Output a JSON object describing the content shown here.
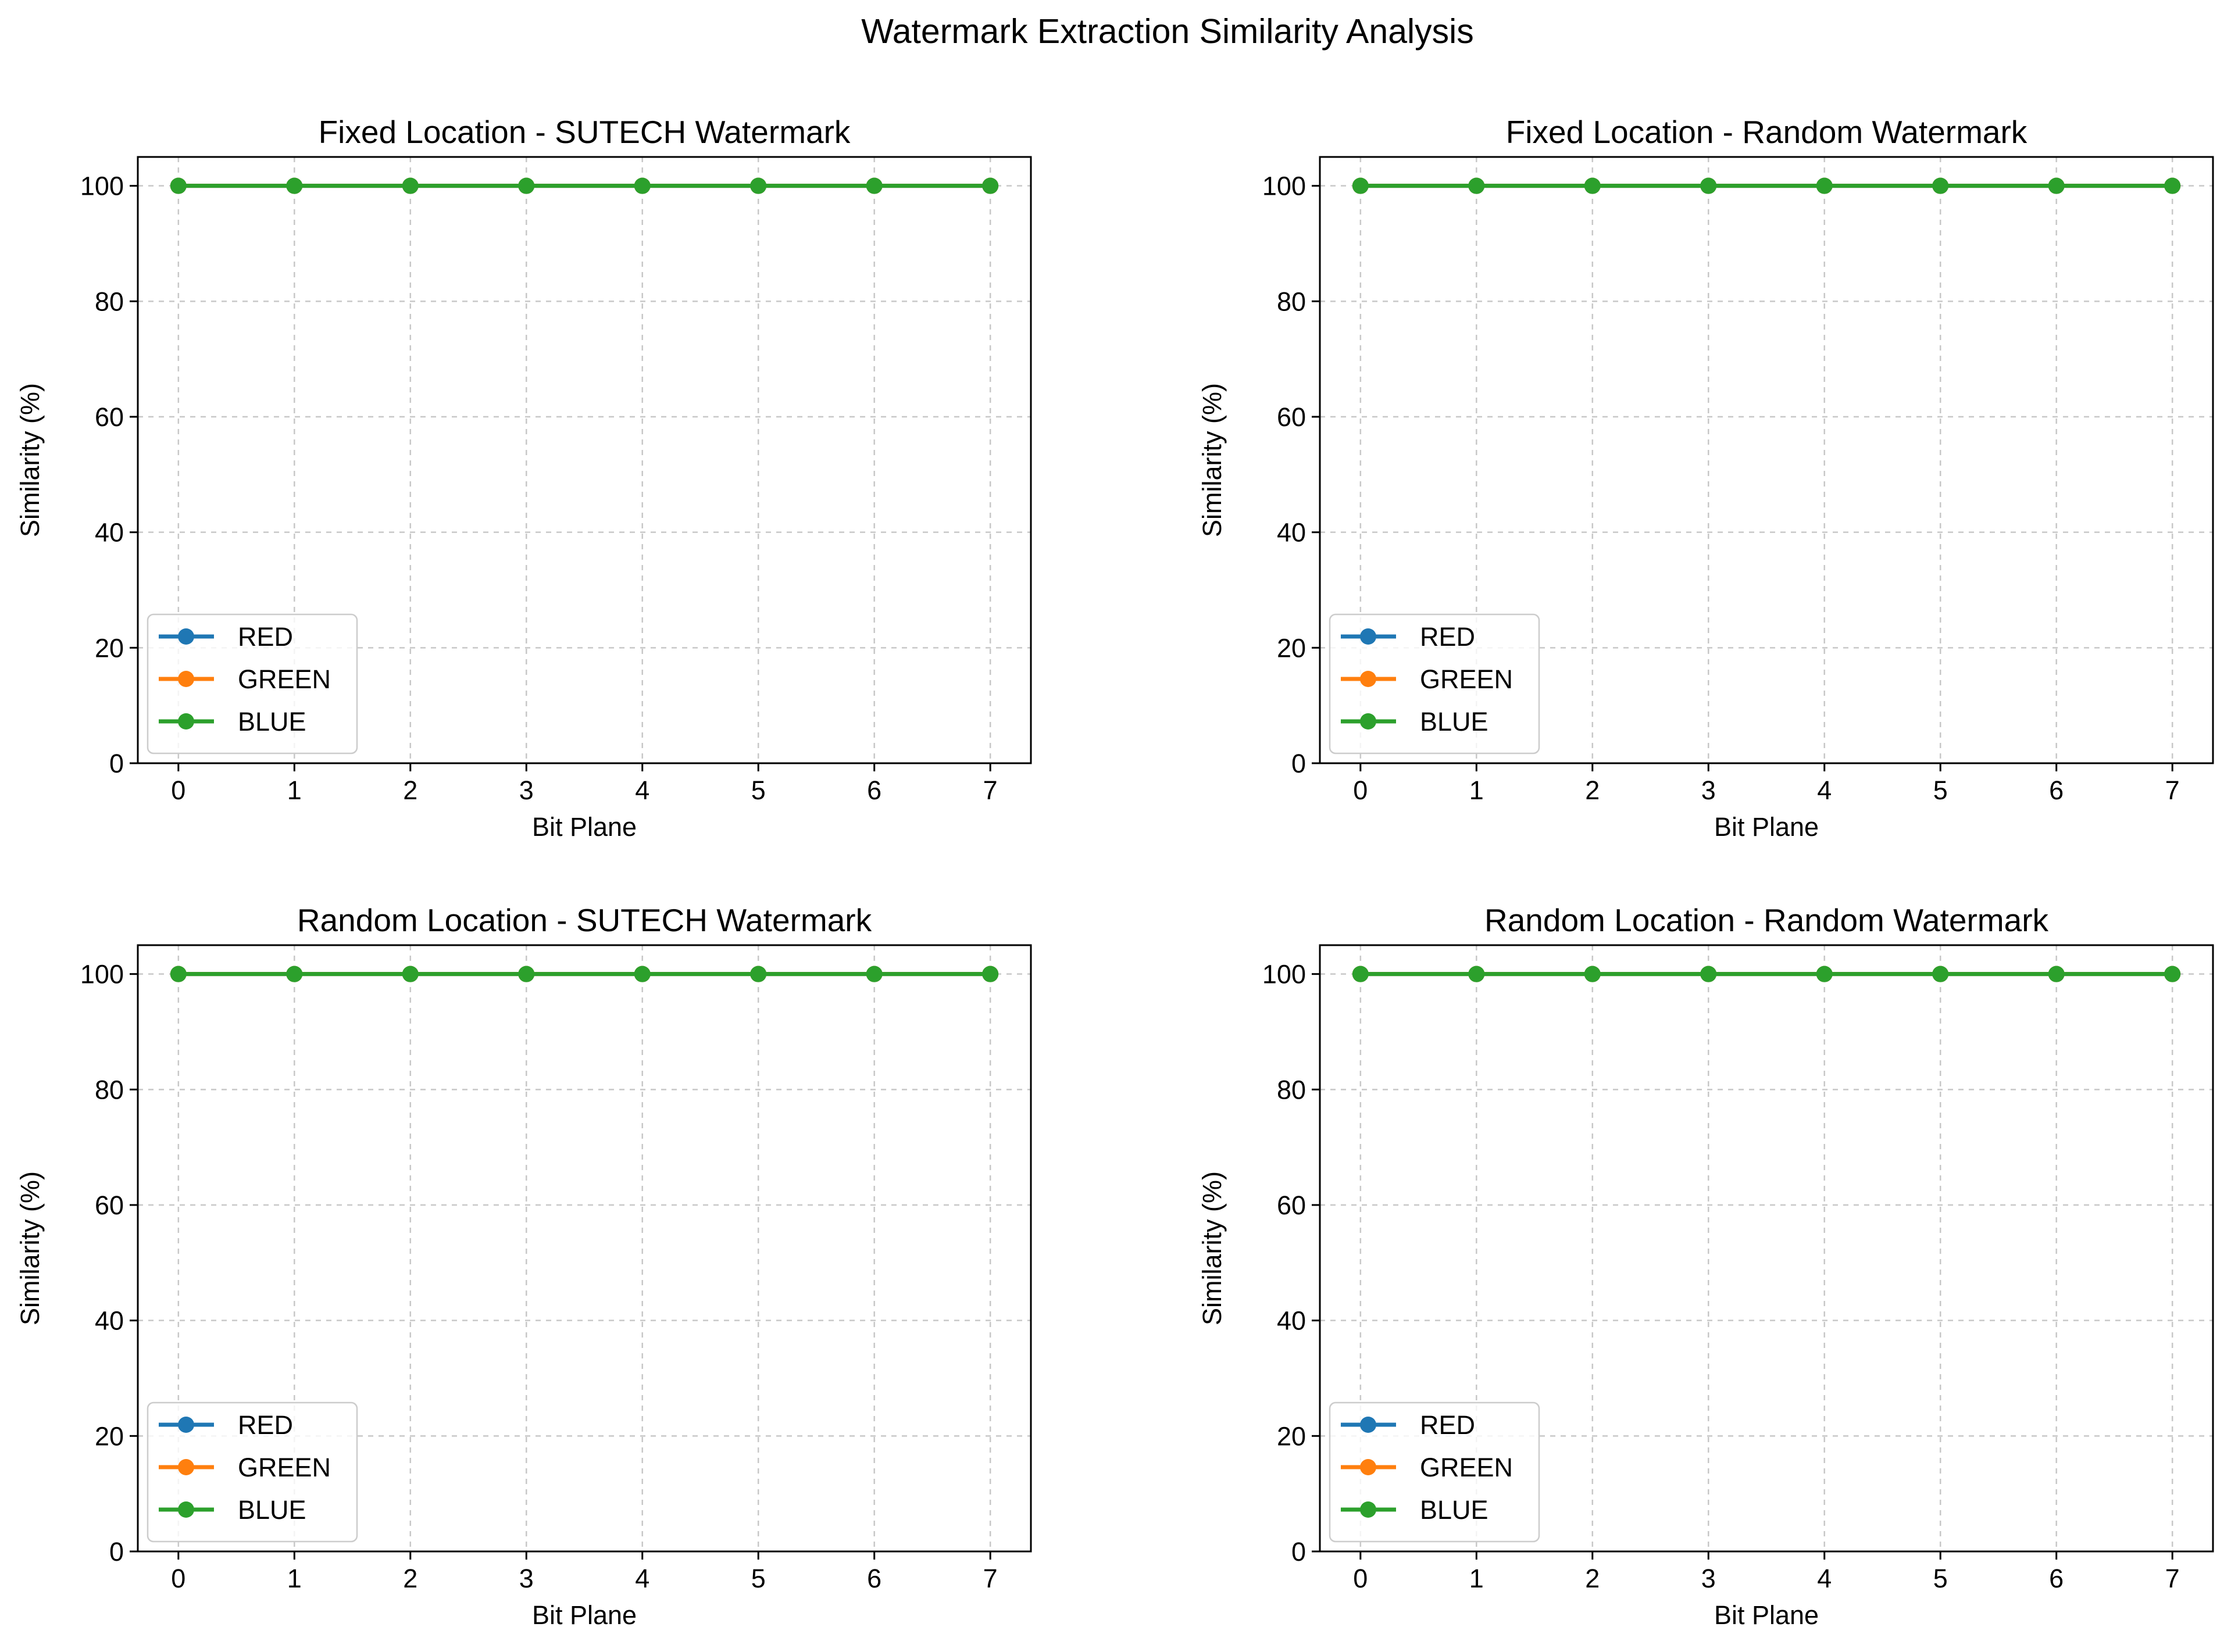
{
  "figure": {
    "suptitle": "Watermark Extraction Similarity Analysis"
  },
  "chart_data": [
    {
      "type": "line",
      "title": "Fixed Location - SUTECH Watermark",
      "xlabel": "Bit Plane",
      "ylabel": "Similarity (%)",
      "x": [
        0,
        1,
        2,
        3,
        4,
        5,
        6,
        7
      ],
      "xticks": [
        0,
        1,
        2,
        3,
        4,
        5,
        6,
        7
      ],
      "yticks": [
        0,
        20,
        40,
        60,
        80,
        100
      ],
      "xlim": [
        -0.35,
        7.35
      ],
      "ylim": [
        0,
        105
      ],
      "grid": true,
      "grid_style": "dashed",
      "legend_position": "lower left",
      "series": [
        {
          "name": "RED",
          "color": "#1f77b4",
          "marker": "circle",
          "values": [
            100,
            100,
            100,
            100,
            100,
            100,
            100,
            100
          ]
        },
        {
          "name": "GREEN",
          "color": "#ff7f0e",
          "marker": "circle",
          "values": [
            100,
            100,
            100,
            100,
            100,
            100,
            100,
            100
          ]
        },
        {
          "name": "BLUE",
          "color": "#2ca02c",
          "marker": "circle",
          "values": [
            100,
            100,
            100,
            100,
            100,
            100,
            100,
            100
          ]
        }
      ]
    },
    {
      "type": "line",
      "title": "Fixed Location - Random Watermark",
      "xlabel": "Bit Plane",
      "ylabel": "Similarity (%)",
      "x": [
        0,
        1,
        2,
        3,
        4,
        5,
        6,
        7
      ],
      "xticks": [
        0,
        1,
        2,
        3,
        4,
        5,
        6,
        7
      ],
      "yticks": [
        0,
        20,
        40,
        60,
        80,
        100
      ],
      "xlim": [
        -0.35,
        7.35
      ],
      "ylim": [
        0,
        105
      ],
      "grid": true,
      "grid_style": "dashed",
      "legend_position": "lower left",
      "series": [
        {
          "name": "RED",
          "color": "#1f77b4",
          "marker": "circle",
          "values": [
            100,
            100,
            100,
            100,
            100,
            100,
            100,
            100
          ]
        },
        {
          "name": "GREEN",
          "color": "#ff7f0e",
          "marker": "circle",
          "values": [
            100,
            100,
            100,
            100,
            100,
            100,
            100,
            100
          ]
        },
        {
          "name": "BLUE",
          "color": "#2ca02c",
          "marker": "circle",
          "values": [
            100,
            100,
            100,
            100,
            100,
            100,
            100,
            100
          ]
        }
      ]
    },
    {
      "type": "line",
      "title": "Random Location - SUTECH Watermark",
      "xlabel": "Bit Plane",
      "ylabel": "Similarity (%)",
      "x": [
        0,
        1,
        2,
        3,
        4,
        5,
        6,
        7
      ],
      "xticks": [
        0,
        1,
        2,
        3,
        4,
        5,
        6,
        7
      ],
      "yticks": [
        0,
        20,
        40,
        60,
        80,
        100
      ],
      "xlim": [
        -0.35,
        7.35
      ],
      "ylim": [
        0,
        105
      ],
      "grid": true,
      "grid_style": "dashed",
      "legend_position": "lower left",
      "series": [
        {
          "name": "RED",
          "color": "#1f77b4",
          "marker": "circle",
          "values": [
            100,
            100,
            100,
            100,
            100,
            100,
            100,
            100
          ]
        },
        {
          "name": "GREEN",
          "color": "#ff7f0e",
          "marker": "circle",
          "values": [
            100,
            100,
            100,
            100,
            100,
            100,
            100,
            100
          ]
        },
        {
          "name": "BLUE",
          "color": "#2ca02c",
          "marker": "circle",
          "values": [
            100,
            100,
            100,
            100,
            100,
            100,
            100,
            100
          ]
        }
      ]
    },
    {
      "type": "line",
      "title": "Random Location - Random Watermark",
      "xlabel": "Bit Plane",
      "ylabel": "Similarity (%)",
      "x": [
        0,
        1,
        2,
        3,
        4,
        5,
        6,
        7
      ],
      "xticks": [
        0,
        1,
        2,
        3,
        4,
        5,
        6,
        7
      ],
      "yticks": [
        0,
        20,
        40,
        60,
        80,
        100
      ],
      "xlim": [
        -0.35,
        7.35
      ],
      "ylim": [
        0,
        105
      ],
      "grid": true,
      "grid_style": "dashed",
      "legend_position": "lower left",
      "series": [
        {
          "name": "RED",
          "color": "#1f77b4",
          "marker": "circle",
          "values": [
            100,
            100,
            100,
            100,
            100,
            100,
            100,
            100
          ]
        },
        {
          "name": "GREEN",
          "color": "#ff7f0e",
          "marker": "circle",
          "values": [
            100,
            100,
            100,
            100,
            100,
            100,
            100,
            100
          ]
        },
        {
          "name": "BLUE",
          "color": "#2ca02c",
          "marker": "circle",
          "values": [
            100,
            100,
            100,
            100,
            100,
            100,
            100,
            100
          ]
        }
      ]
    }
  ]
}
